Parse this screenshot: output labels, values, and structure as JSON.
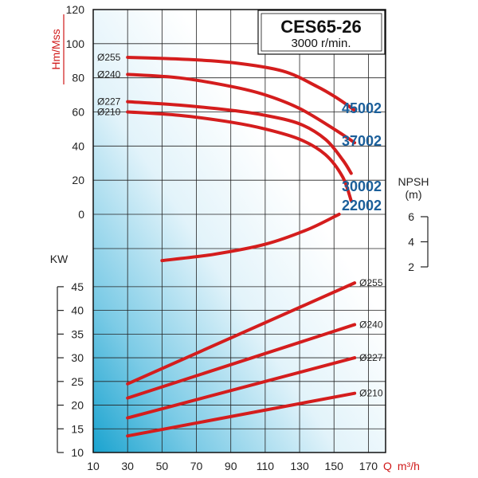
{
  "chart_data": {
    "type": "line",
    "title": "CES65-26",
    "subtitle": "3000 r/min.",
    "x_axis": {
      "label_prefix": "Q",
      "label_unit": "m³/h",
      "range": [
        10,
        180
      ],
      "ticks": [
        10,
        30,
        50,
        70,
        90,
        110,
        130,
        150,
        170
      ]
    },
    "head_axis": {
      "label": "Hm/Mss",
      "range": [
        0,
        120
      ],
      "ticks": [
        0,
        20,
        40,
        60,
        80,
        100,
        120
      ]
    },
    "power_axis": {
      "label": "KW",
      "range": [
        10,
        47
      ],
      "ticks": [
        10,
        15,
        20,
        25,
        30,
        35,
        40,
        45
      ]
    },
    "npsh_axis": {
      "label": "NPSH",
      "unit": "(m)",
      "range": [
        2,
        6
      ],
      "ticks": [
        2,
        4,
        6
      ]
    },
    "head_curves": [
      {
        "name": "Ø255",
        "model": "45002",
        "points": [
          [
            30,
            92
          ],
          [
            60,
            91
          ],
          [
            90,
            89
          ],
          [
            120,
            84
          ],
          [
            140,
            75
          ],
          [
            152,
            68
          ],
          [
            162,
            61
          ]
        ]
      },
      {
        "name": "Ø240",
        "model": "37002",
        "points": [
          [
            30,
            82
          ],
          [
            60,
            80
          ],
          [
            90,
            75
          ],
          [
            110,
            70
          ],
          [
            130,
            62
          ],
          [
            150,
            50
          ],
          [
            162,
            42
          ]
        ]
      },
      {
        "name": "Ø227",
        "model": "30002",
        "points": [
          [
            30,
            66
          ],
          [
            60,
            64
          ],
          [
            90,
            61
          ],
          [
            110,
            58
          ],
          [
            130,
            53
          ],
          [
            145,
            44
          ],
          [
            155,
            32
          ],
          [
            160,
            24
          ]
        ]
      },
      {
        "name": "Ø210",
        "model": "22002",
        "points": [
          [
            30,
            60
          ],
          [
            60,
            58
          ],
          [
            90,
            54
          ],
          [
            110,
            50
          ],
          [
            130,
            44
          ],
          [
            145,
            35
          ],
          [
            155,
            22
          ],
          [
            160,
            8
          ]
        ]
      }
    ],
    "npsh_curve": {
      "points": [
        [
          50,
          2.5
        ],
        [
          80,
          3.0
        ],
        [
          110,
          3.8
        ],
        [
          135,
          5.0
        ],
        [
          153,
          6.2
        ]
      ]
    },
    "power_curves": [
      {
        "name": "Ø255",
        "points": [
          [
            30,
            24.5
          ],
          [
            162,
            45.8
          ]
        ]
      },
      {
        "name": "Ø240",
        "points": [
          [
            30,
            21.5
          ],
          [
            162,
            37.0
          ]
        ]
      },
      {
        "name": "Ø227",
        "points": [
          [
            30,
            17.3
          ],
          [
            162,
            30.0
          ]
        ]
      },
      {
        "name": "Ø210",
        "points": [
          [
            30,
            13.5
          ],
          [
            162,
            22.5
          ]
        ]
      }
    ],
    "colors": {
      "curve": "#d41d1d",
      "model_label": "#1b5f9a",
      "axis_title": "#d01919"
    },
    "grid": true
  }
}
